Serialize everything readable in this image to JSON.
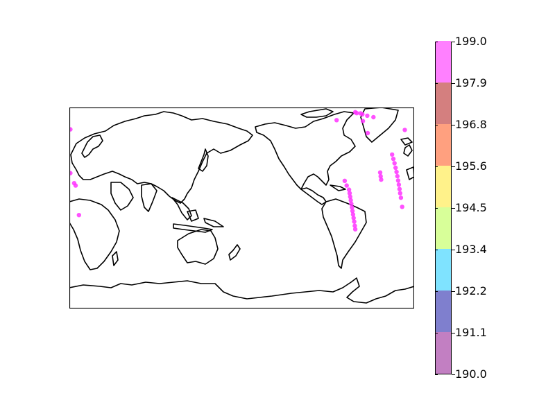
{
  "chart_data": {
    "type": "scatter",
    "title": "",
    "projection": "cylindrical",
    "grid": false,
    "colorbar": {
      "orientation": "vertical",
      "placement": "right",
      "min": 190.0,
      "max": 199.0,
      "tick_labels": [
        "190.0",
        "191.1",
        "192.2",
        "193.4",
        "194.5",
        "195.6",
        "196.8",
        "197.9",
        "199.0"
      ],
      "colors": [
        "#c27fc2",
        "#7f7fce",
        "#7fe3ff",
        "#d8ff99",
        "#fff28a",
        "#ffa07f",
        "#d47f7f",
        "#ff80ff"
      ]
    },
    "points": [
      {
        "lon": -111.0,
        "lat": 69.3,
        "value": 199.0
      },
      {
        "lon": -91.5,
        "lat": 76.0,
        "value": 199.0
      },
      {
        "lon": -90.0,
        "lat": 75.2,
        "value": 199.0
      },
      {
        "lon": -86.0,
        "lat": 75.0,
        "value": 199.0
      },
      {
        "lon": -84.0,
        "lat": 74.2,
        "value": 199.0
      },
      {
        "lon": -79.0,
        "lat": 73.0,
        "value": 199.0
      },
      {
        "lon": -72.5,
        "lat": 71.8,
        "value": 199.0
      },
      {
        "lon": -83.5,
        "lat": 68.5,
        "value": 199.0
      },
      {
        "lon": -78.5,
        "lat": 58.3,
        "value": 199.0
      },
      {
        "lon": -39.8,
        "lat": 61.0,
        "value": 199.0
      },
      {
        "lon": -29.0,
        "lat": 61.5,
        "value": 199.0
      },
      {
        "lon": -53.0,
        "lat": 40.2,
        "value": 199.0
      },
      {
        "lon": -51.7,
        "lat": 36.5,
        "value": 199.0
      },
      {
        "lon": -50.5,
        "lat": 32.8,
        "value": 199.0
      },
      {
        "lon": -49.4,
        "lat": 29.0,
        "value": 199.0
      },
      {
        "lon": -48.4,
        "lat": 25.5,
        "value": 199.0
      },
      {
        "lon": -47.5,
        "lat": 21.9,
        "value": 199.0
      },
      {
        "lon": -46.7,
        "lat": 18.2,
        "value": 199.0
      },
      {
        "lon": -46.0,
        "lat": 14.7,
        "value": 199.0
      },
      {
        "lon": -45.3,
        "lat": 11.0,
        "value": 199.0
      },
      {
        "lon": -44.6,
        "lat": 7.5,
        "value": 199.0
      },
      {
        "lon": -43.8,
        "lat": 3.7,
        "value": 199.0
      },
      {
        "lon": -65.5,
        "lat": 25.0,
        "value": 199.0
      },
      {
        "lon": -65.0,
        "lat": 21.8,
        "value": 199.0
      },
      {
        "lon": -64.5,
        "lat": 19.0,
        "value": 199.0
      },
      {
        "lon": -29.0,
        "lat": 24.5,
        "value": 199.0
      },
      {
        "lon": -25.0,
        "lat": 16.0,
        "value": 199.0
      },
      {
        "lon": -23.5,
        "lat": 14.0,
        "value": 199.0
      },
      {
        "lon": -42.5,
        "lat": -4.0,
        "value": 199.0
      },
      {
        "lon": -20.0,
        "lat": -11.0,
        "value": 199.0
      },
      {
        "lon": -102.5,
        "lat": 18.0,
        "value": 199.0
      },
      {
        "lon": -100.5,
        "lat": 14.0,
        "value": 199.0
      },
      {
        "lon": -98.0,
        "lat": 10.5,
        "value": 199.0
      },
      {
        "lon": -97.4,
        "lat": 7.5,
        "value": 199.0
      },
      {
        "lon": -96.8,
        "lat": 4.5,
        "value": 199.0
      },
      {
        "lon": -96.2,
        "lat": 1.5,
        "value": 199.0
      },
      {
        "lon": -95.6,
        "lat": -1.5,
        "value": 199.0
      },
      {
        "lon": -95.0,
        "lat": -4.5,
        "value": 199.0
      },
      {
        "lon": -94.4,
        "lat": -7.5,
        "value": 199.0
      },
      {
        "lon": -93.8,
        "lat": -10.5,
        "value": 199.0
      },
      {
        "lon": -93.2,
        "lat": -13.5,
        "value": 199.0
      },
      {
        "lon": -92.6,
        "lat": -16.5,
        "value": 199.0
      },
      {
        "lon": -92.0,
        "lat": -20.0,
        "value": 199.0
      },
      {
        "lon": -91.5,
        "lat": -23.0,
        "value": 199.0
      }
    ],
    "point_color": "#ff33ff"
  }
}
